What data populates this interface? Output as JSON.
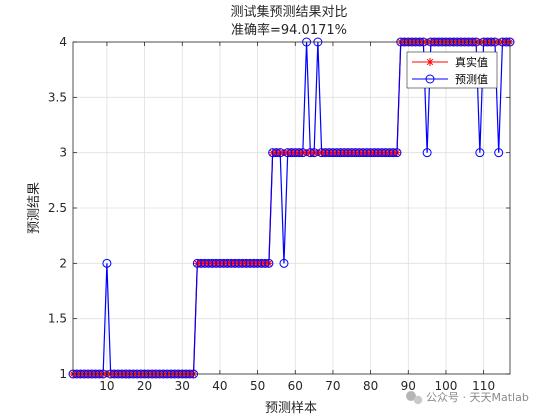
{
  "chart_data": {
    "type": "line",
    "title": "测试集预测结果对比",
    "subtitle": "准确率=94.0171%",
    "xlabel": "预测样本",
    "ylabel": "预测结果",
    "xlim": [
      1,
      117
    ],
    "ylim": [
      1,
      4
    ],
    "xticks": [
      10,
      20,
      30,
      40,
      50,
      60,
      70,
      80,
      90,
      100,
      110
    ],
    "yticks": [
      1,
      1.5,
      2,
      2.5,
      3,
      3.5,
      4
    ],
    "grid": true,
    "legend_position": "top-right",
    "series": [
      {
        "name": "真实值",
        "color": "#ff0000",
        "marker": "asterisk",
        "values": [
          1,
          1,
          1,
          1,
          1,
          1,
          1,
          1,
          1,
          1,
          1,
          1,
          1,
          1,
          1,
          1,
          1,
          1,
          1,
          1,
          1,
          1,
          1,
          1,
          1,
          1,
          1,
          1,
          1,
          1,
          1,
          1,
          1,
          2,
          2,
          2,
          2,
          2,
          2,
          2,
          2,
          2,
          2,
          2,
          2,
          2,
          2,
          2,
          2,
          2,
          2,
          2,
          2,
          3,
          3,
          3,
          3,
          3,
          3,
          3,
          3,
          3,
          3,
          3,
          3,
          3,
          3,
          3,
          3,
          3,
          3,
          3,
          3,
          3,
          3,
          3,
          3,
          3,
          3,
          3,
          3,
          3,
          3,
          3,
          3,
          3,
          3,
          4,
          4,
          4,
          4,
          4,
          4,
          4,
          4,
          4,
          4,
          4,
          4,
          4,
          4,
          4,
          4,
          4,
          4,
          4,
          4,
          4,
          4,
          4,
          4,
          4,
          4,
          4,
          4,
          4,
          4
        ]
      },
      {
        "name": "预测值",
        "color": "#0000ff",
        "marker": "circle",
        "values": [
          1,
          1,
          1,
          1,
          1,
          1,
          1,
          1,
          1,
          2,
          1,
          1,
          1,
          1,
          1,
          1,
          1,
          1,
          1,
          1,
          1,
          1,
          1,
          1,
          1,
          1,
          1,
          1,
          1,
          1,
          1,
          1,
          1,
          2,
          2,
          2,
          2,
          2,
          2,
          2,
          2,
          2,
          2,
          2,
          2,
          2,
          2,
          2,
          2,
          2,
          2,
          2,
          2,
          3,
          3,
          3,
          2,
          3,
          3,
          3,
          3,
          3,
          4,
          3,
          3,
          4,
          3,
          3,
          3,
          3,
          3,
          3,
          3,
          3,
          3,
          3,
          3,
          3,
          3,
          3,
          3,
          3,
          3,
          3,
          3,
          3,
          3,
          4,
          4,
          4,
          4,
          4,
          4,
          4,
          3,
          4,
          4,
          4,
          4,
          4,
          4,
          4,
          4,
          4,
          4,
          4,
          4,
          4,
          3,
          4,
          4,
          4,
          4,
          3,
          4,
          4,
          4
        ]
      }
    ]
  },
  "watermark": {
    "icon": "wechat-icon",
    "text": "公众号 · 天天Matlab"
  }
}
